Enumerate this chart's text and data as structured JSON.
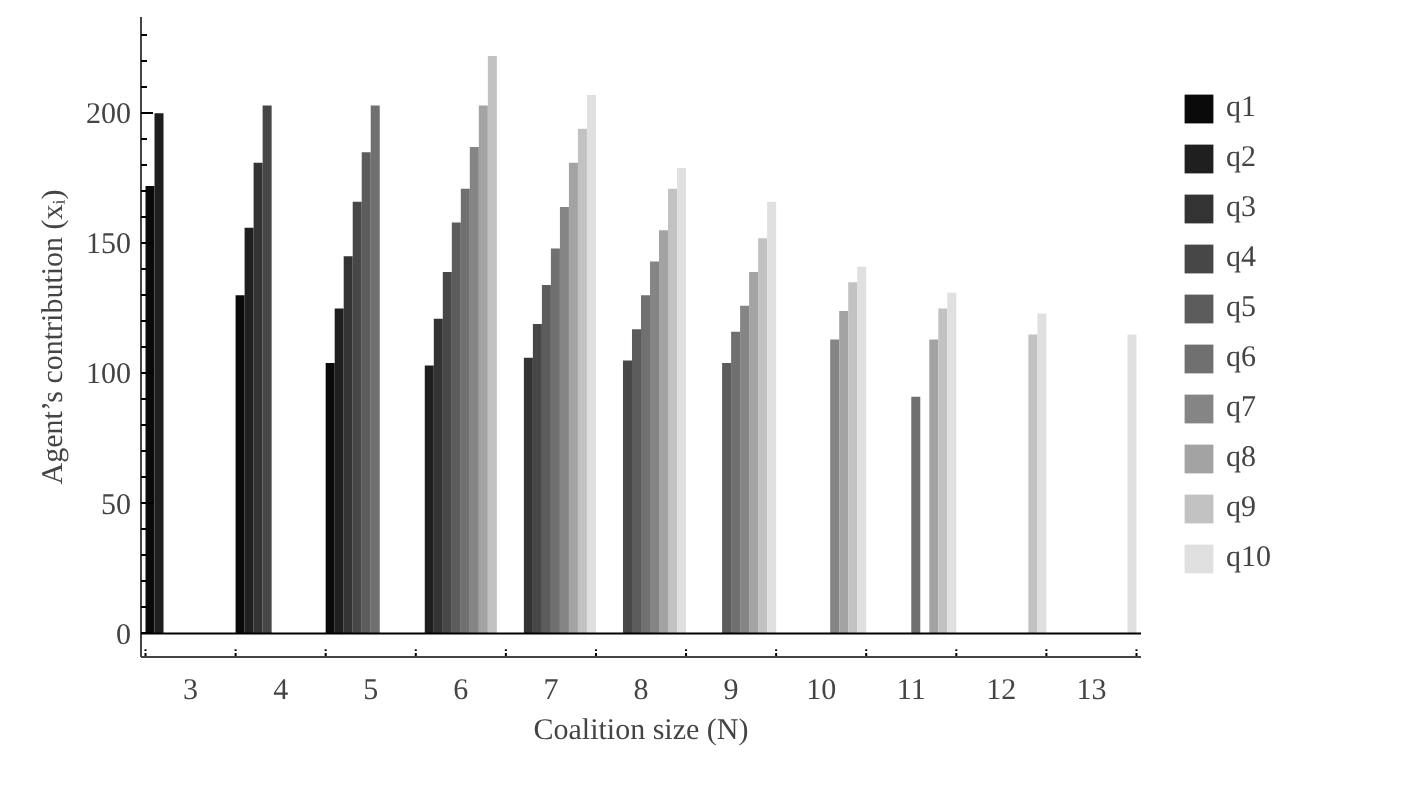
{
  "chart_data": {
    "type": "bar",
    "xlabel": "Coalition size (N)",
    "ylabel": "Agent’s contribution (xᵢ)",
    "categories": [
      "3",
      "4",
      "5",
      "6",
      "7",
      "8",
      "9",
      "10",
      "11",
      "12",
      "13"
    ],
    "series": [
      {
        "name": "q1",
        "color": "#0a0a0a",
        "values": [
          172,
          130,
          104,
          null,
          null,
          null,
          null,
          null,
          null,
          null,
          null
        ]
      },
      {
        "name": "q2",
        "color": "#1f1f1f",
        "values": [
          200,
          156,
          125,
          103,
          null,
          null,
          null,
          null,
          null,
          null,
          null
        ]
      },
      {
        "name": "q3",
        "color": "#333333",
        "values": [
          null,
          181,
          145,
          121,
          106,
          null,
          null,
          null,
          null,
          null,
          null
        ]
      },
      {
        "name": "q4",
        "color": "#474747",
        "values": [
          null,
          203,
          166,
          139,
          119,
          105,
          null,
          null,
          null,
          null,
          null
        ]
      },
      {
        "name": "q5",
        "color": "#5c5c5c",
        "values": [
          null,
          null,
          185,
          158,
          134,
          117,
          104,
          null,
          null,
          null,
          null
        ]
      },
      {
        "name": "q6",
        "color": "#707070",
        "values": [
          null,
          null,
          203,
          171,
          148,
          130,
          116,
          null,
          91,
          null,
          null
        ]
      },
      {
        "name": "q7",
        "color": "#858585",
        "values": [
          null,
          null,
          null,
          187,
          164,
          143,
          126,
          113,
          null,
          null,
          null
        ]
      },
      {
        "name": "q8",
        "color": "#a3a3a3",
        "values": [
          null,
          null,
          null,
          203,
          181,
          155,
          139,
          124,
          113,
          null,
          null
        ]
      },
      {
        "name": "q9",
        "color": "#c2c2c2",
        "values": [
          null,
          null,
          null,
          222,
          194,
          171,
          152,
          135,
          125,
          115,
          null
        ]
      },
      {
        "name": "q10",
        "color": "#e0e0e0",
        "values": [
          null,
          null,
          null,
          null,
          207,
          179,
          166,
          141,
          131,
          123,
          115
        ]
      }
    ],
    "ylim": [
      -9,
      237
    ],
    "yticks": [
      0,
      50,
      100,
      150,
      200
    ],
    "ref_lines": [
      {
        "axis": "y",
        "value": 0,
        "label": null
      }
    ],
    "grid": false,
    "legend": "right"
  }
}
